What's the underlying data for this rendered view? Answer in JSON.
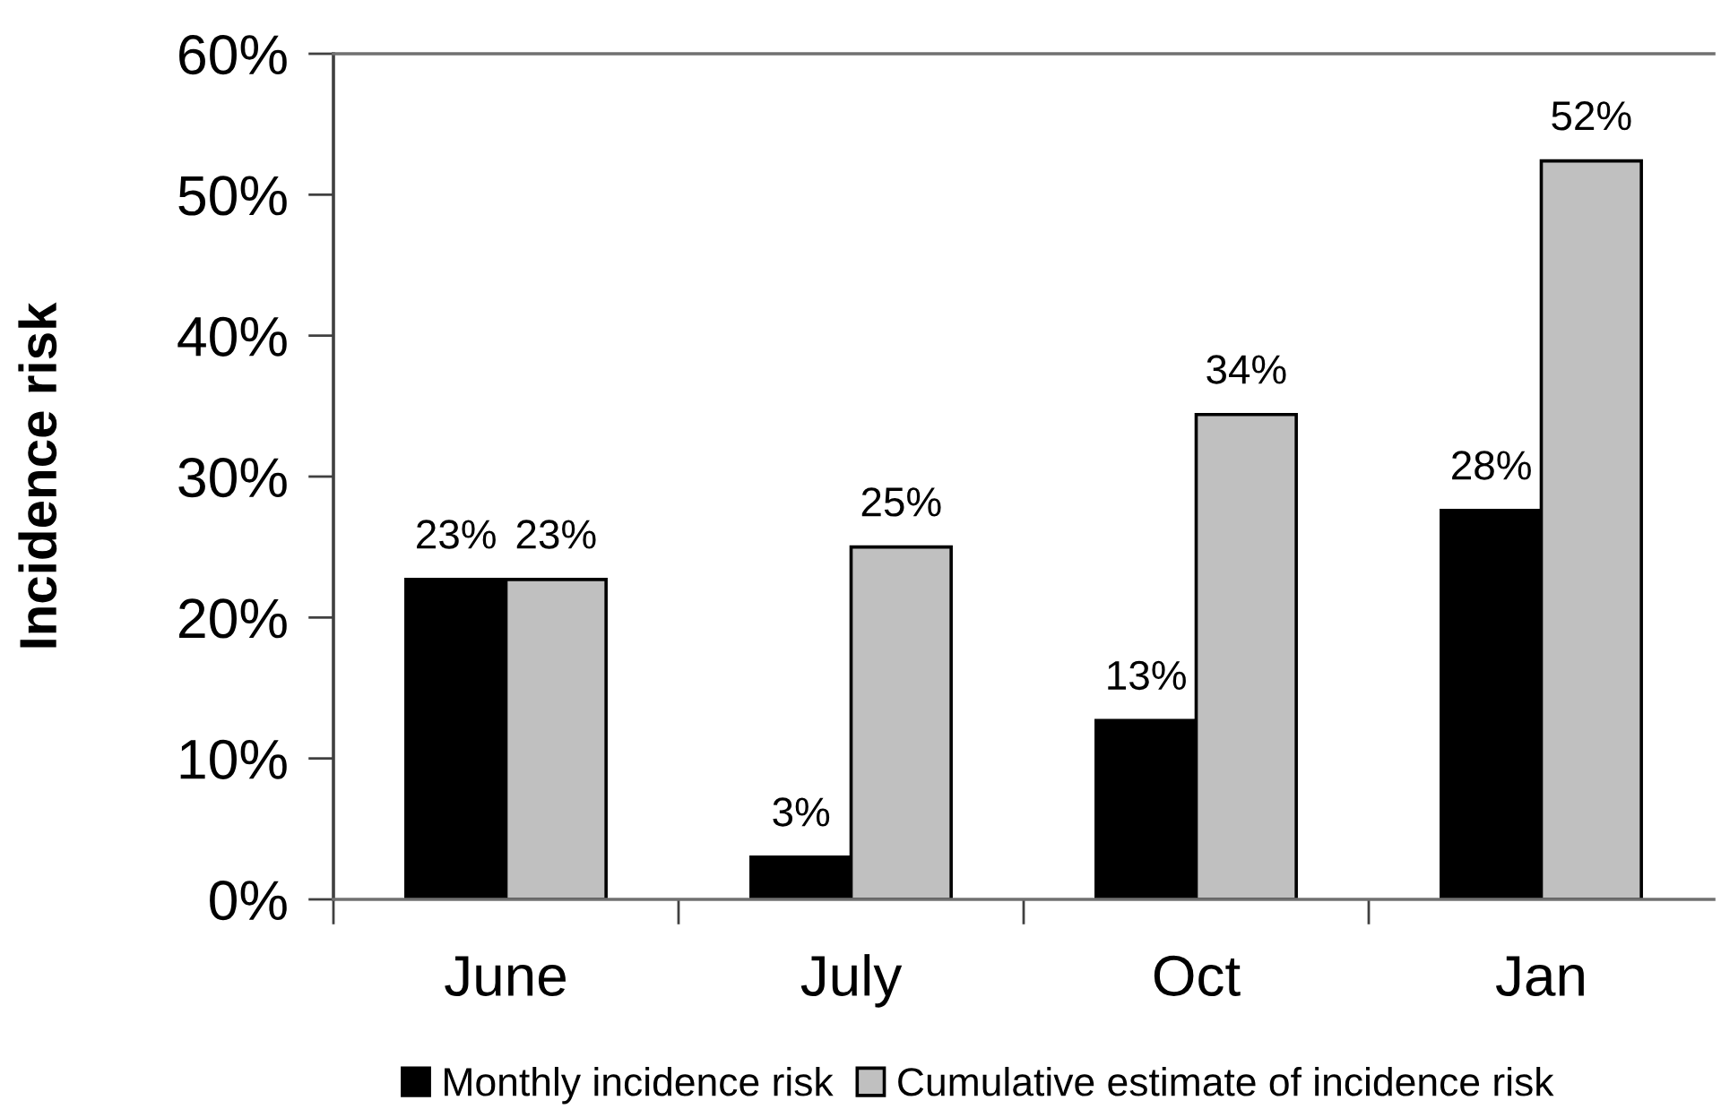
{
  "chart_data": {
    "type": "bar",
    "ylabel": "Incidence risk",
    "categories": [
      "June",
      "July",
      "Oct",
      "Jan"
    ],
    "series": [
      {
        "name": "Monthly incidence risk",
        "color": "#000000",
        "values": [
          22.7,
          3.0,
          12.7,
          27.6
        ],
        "value_labels": [
          "23%",
          "3%",
          "13%",
          "28%"
        ]
      },
      {
        "name": "Cumulative estimate of incidence risk",
        "color": "#c0c0c0",
        "values": [
          22.7,
          25.0,
          34.4,
          52.4
        ],
        "value_labels": [
          "23%",
          "25%",
          "34%",
          "52%"
        ]
      }
    ],
    "ylim": [
      0,
      60
    ],
    "yticks": [
      {
        "value": 0,
        "label": "0%"
      },
      {
        "value": 10,
        "label": "10%"
      },
      {
        "value": 20,
        "label": "20%"
      },
      {
        "value": 30,
        "label": "30%"
      },
      {
        "value": 40,
        "label": "40%"
      },
      {
        "value": 50,
        "label": "50%"
      },
      {
        "value": 60,
        "label": "60%"
      }
    ],
    "legend": "bottom"
  }
}
